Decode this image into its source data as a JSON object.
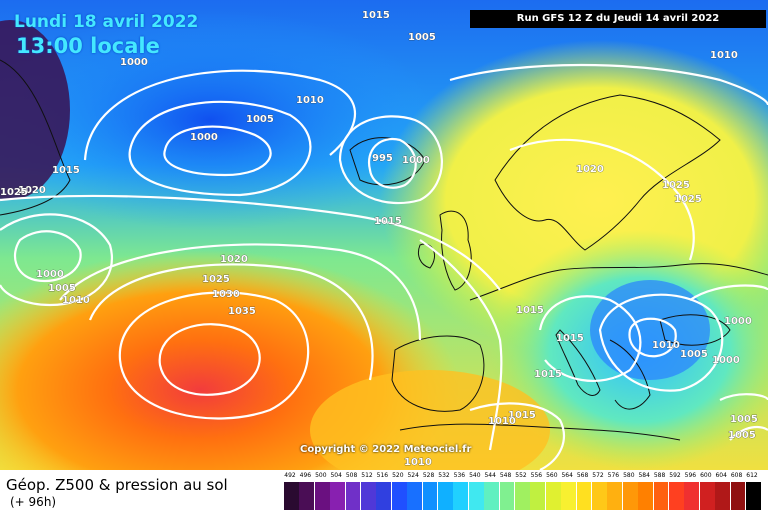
{
  "header": {
    "date": "Lundi 18 avril 2022",
    "time": "13:00 locale",
    "run": "Run GFS 12 Z du Jeudi 14 avril 2022"
  },
  "copyright": "Copyright © 2022 Meteociel.fr",
  "footer": {
    "title": "Géop. Z500 & pression au sol",
    "forecast_hour": "(+ 96h)"
  },
  "isobar_labels": [
    "1015",
    "1005",
    "1000",
    "1010",
    "1005",
    "1000",
    "995",
    "1000",
    "1015",
    "1020",
    "1025",
    "1000",
    "1005",
    "1010",
    "1020",
    "1025",
    "1030",
    "1035",
    "1015",
    "1020",
    "1025",
    "1025",
    "1010",
    "1015",
    "1015",
    "1010",
    "1005",
    "1000",
    "1000",
    "1015",
    "1015",
    "1010",
    "1005",
    "1005",
    "1010"
  ],
  "color_scale": {
    "labels": [
      "492",
      "496",
      "500",
      "504",
      "508",
      "512",
      "516",
      "520",
      "524",
      "528",
      "532",
      "536",
      "540",
      "544",
      "548",
      "552",
      "556",
      "560",
      "564",
      "568",
      "572",
      "576",
      "580",
      "584",
      "588",
      "592",
      "596",
      "600",
      "604",
      "608",
      "612"
    ],
    "colors": [
      "#2a0a30",
      "#4a0d55",
      "#6a1080",
      "#8820b0",
      "#7030c8",
      "#5038d8",
      "#3040e0",
      "#2050ff",
      "#1870ff",
      "#1090ff",
      "#10b0ff",
      "#20d0ff",
      "#40e8f0",
      "#60f0c0",
      "#80f090",
      "#a0f060",
      "#c0f040",
      "#e0f030",
      "#f8f030",
      "#ffe020",
      "#ffc818",
      "#ffb010",
      "#ff9808",
      "#ff8000",
      "#ff6010",
      "#ff4020",
      "#f03030",
      "#d02020",
      "#b01818",
      "#901010",
      "#000000"
    ]
  },
  "palette": {
    "sea_deep_blue": "#1e6ef0",
    "land_yellow": "#f4f03c",
    "warm_orange": "#ff8c10",
    "low_purple": "#3a0a40"
  }
}
